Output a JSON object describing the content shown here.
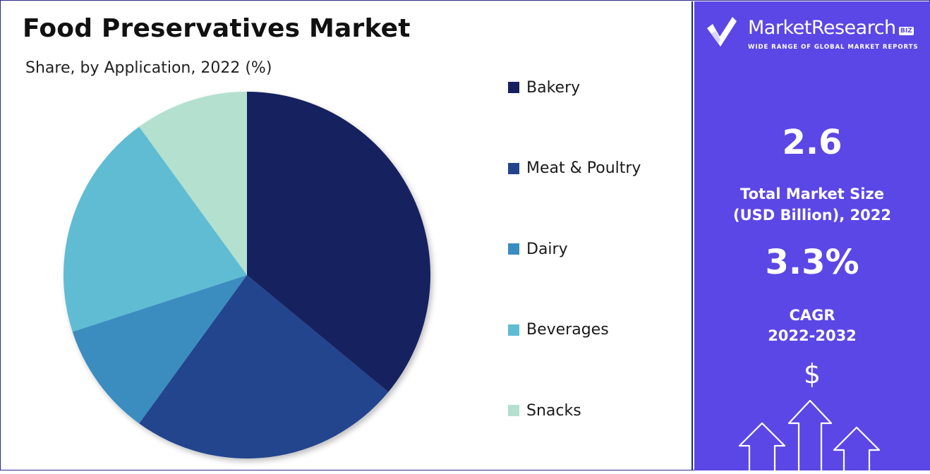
{
  "title": "Food Preservatives Market",
  "subtitle": "Share, by Application, 2022 (%)",
  "chart_data": {
    "type": "pie",
    "categories": [
      "Bakery",
      "Meat & Poultry",
      "Dairy",
      "Beverages",
      "Snacks"
    ],
    "values": [
      36,
      24,
      10,
      20,
      10
    ],
    "colors": [
      "#16205e",
      "#23448d",
      "#3a8dc0",
      "#5fbcd3",
      "#b3e0cf"
    ],
    "start_angle_deg": 0,
    "direction": "clockwise",
    "legend_position": "right"
  },
  "brand": {
    "name": "MarketResearch",
    "badge": "BIZ",
    "tagline": "WIDE RANGE OF GLOBAL MARKET REPORTS",
    "panel_color": "#5b47e6"
  },
  "stats": {
    "market_size_value": "2.6",
    "market_size_label_line1": "Total Market Size",
    "market_size_label_line2": "(USD Billion), 2022",
    "cagr_value": "3.3%",
    "cagr_label_line1": "CAGR",
    "cagr_label_line2": "2022-2032"
  },
  "icons": {
    "currency_symbol": "$",
    "growth_icon": "upward-arrows-icon",
    "logo_icon": "checkmark-logo-icon"
  }
}
